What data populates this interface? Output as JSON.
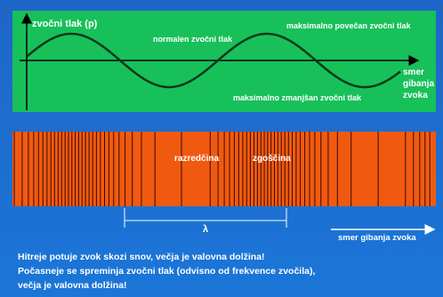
{
  "wave_panel": {
    "axis_label": "zvočni tlak (p)",
    "normal_label": "normalen zvočni tlak",
    "max_label": "maksimalno povečan zvočni tlak",
    "min_label": "maksimalno zmanjšan zvočni tlak",
    "direction_label": [
      "smer",
      "gibanja",
      "zvoka"
    ]
  },
  "density_panel": {
    "rarefaction_label": "razredčina",
    "compression_label": "zgoščina",
    "wavelength_label": "λ",
    "direction_label": "smer gibanja zvoka"
  },
  "footer": {
    "lines": [
      "Hitreje potuje zvok skozi snov, večja je valovna dolžina!",
      "Počasneje se spreminja zvočni tlak (odvisno od frekvence zvočila),",
      "večja je valovna dolžina!"
    ]
  }
}
